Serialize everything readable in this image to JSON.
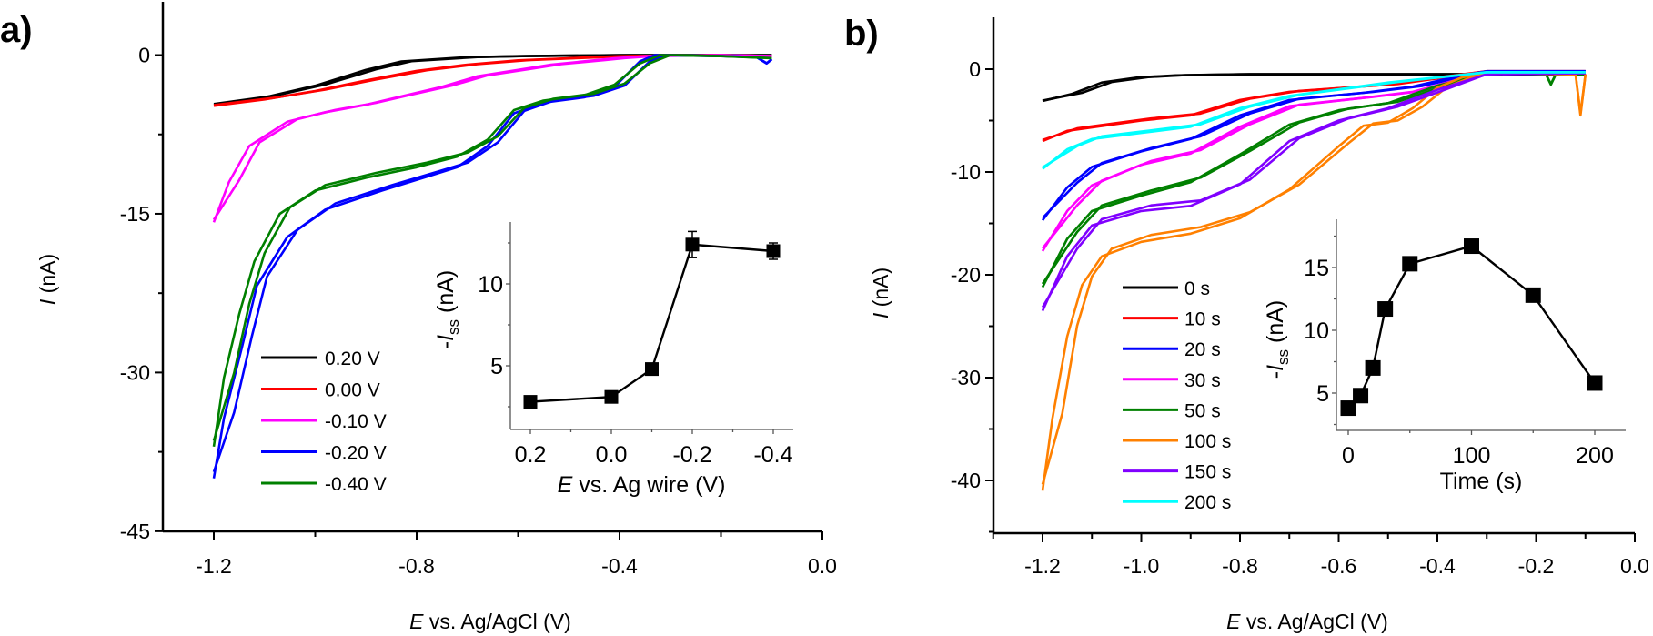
{
  "chart_data": [
    {
      "panel_label": "a)",
      "type": "line",
      "xlabel": {
        "symbol": "E",
        "text": " vs. Ag/AgCl (V)"
      },
      "ylabel": {
        "symbol": "I",
        "text": " (nA)"
      },
      "xlim": [
        -1.3,
        0.0
      ],
      "ylim": [
        -45,
        5
      ],
      "xticks": [
        "-1.2",
        "-0.8",
        "-0.4",
        "0.0"
      ],
      "yticks": [
        "0",
        "-15",
        "-30",
        "-45"
      ],
      "grid": false,
      "legend_position": "bottom-left",
      "series": [
        {
          "name": "0.20 V",
          "color": "#000000",
          "x": [
            -1.2,
            -1.1,
            -1.0,
            -0.9,
            -0.83,
            -0.7,
            -0.6,
            -0.4,
            -0.2,
            -0.1
          ],
          "y": [
            -4.7,
            -4.0,
            -2.9,
            -1.4,
            -0.6,
            -0.2,
            -0.1,
            0,
            0,
            0
          ]
        },
        {
          "name": "0.00 V",
          "color": "#ff0000",
          "x": [
            -1.2,
            -1.1,
            -1.0,
            -0.9,
            -0.8,
            -0.7,
            -0.6,
            -0.5,
            -0.4,
            -0.2,
            -0.1
          ],
          "y": [
            -4.8,
            -4.2,
            -3.4,
            -2.4,
            -1.5,
            -0.9,
            -0.5,
            -0.3,
            -0.1,
            0,
            -0.1
          ]
        },
        {
          "name": "-0.10 V",
          "color": "#ff00ff",
          "x": [
            -1.2,
            -1.17,
            -1.13,
            -1.055,
            -0.98,
            -0.9,
            -0.83,
            -0.75,
            -0.68,
            -0.6,
            -0.535,
            -0.45,
            -0.41,
            -0.35,
            -0.2,
            -0.1
          ],
          "y": [
            -15.8,
            -12.0,
            -8.6,
            -6.3,
            -5.4,
            -4.7,
            -3.9,
            -3.0,
            -2.0,
            -1.4,
            -0.9,
            -0.5,
            -0.3,
            -0.1,
            0,
            -0.1
          ]
        },
        {
          "name": "-0.20 V",
          "color": "#0000ff",
          "x": [
            -1.2,
            -1.18,
            -1.145,
            -1.115,
            -1.055,
            -0.98,
            -0.868,
            -0.78,
            -0.72,
            -0.66,
            -0.608,
            -0.55,
            -0.47,
            -0.41,
            -0.36,
            -0.33,
            -0.2,
            -0.13,
            -0.11,
            -0.1
          ],
          "y": [
            -40,
            -34.3,
            -27.7,
            -21.8,
            -17.2,
            -14.6,
            -12.8,
            -11.5,
            -10.6,
            -8.6,
            -5.5,
            -4.5,
            -4.0,
            -3.0,
            -0.6,
            0,
            -0.1,
            -0.2,
            -0.8,
            -0.4
          ]
        },
        {
          "name": "-0.40 V",
          "color": "#008000",
          "x": [
            -1.2,
            -1.18,
            -1.15,
            -1.12,
            -1.07,
            -1.0,
            -0.9,
            -0.8,
            -0.72,
            -0.66,
            -0.608,
            -0.55,
            -0.47,
            -0.41,
            -0.36,
            -0.32,
            -0.2,
            -0.1
          ],
          "y": [
            -37,
            -30.5,
            -24.5,
            -19.5,
            -15.0,
            -12.8,
            -11.6,
            -10.6,
            -9.6,
            -8.0,
            -5.2,
            -4.3,
            -3.8,
            -2.8,
            -0.8,
            0,
            -0.1,
            -0.3
          ]
        }
      ],
      "inset": {
        "type": "line",
        "xlabel": {
          "symbol": "E",
          "text": " vs. Ag wire (V)"
        },
        "ylabel": {
          "prefix": "-",
          "symbol": "I",
          "subscript": "ss",
          "text": " (nA)"
        },
        "xlim": [
          0.25,
          -0.45
        ],
        "ylim": [
          1.1,
          13.8
        ],
        "xticks": [
          "0.2",
          "0.0",
          "-0.2",
          "-0.4"
        ],
        "yticks": [
          "5",
          "10"
        ],
        "marker": "square",
        "x": [
          0.2,
          0.0,
          -0.1,
          -0.2,
          -0.4
        ],
        "y": [
          2.8,
          3.1,
          4.8,
          12.4,
          12.0
        ],
        "yerr": [
          0.1,
          0.1,
          0.2,
          0.8,
          0.5
        ]
      }
    },
    {
      "panel_label": "b)",
      "type": "line",
      "xlabel": {
        "symbol": "E",
        "text": " vs. Ag/AgCl (V)"
      },
      "ylabel": {
        "symbol": "I",
        "text": " (nA)"
      },
      "xlim": [
        -1.3,
        0.0
      ],
      "ylim": [
        -45,
        5
      ],
      "xticks": [
        "-1.2",
        "-1.0",
        "-0.8",
        "-0.6",
        "-0.4",
        "-0.2",
        "0.0"
      ],
      "yticks": [
        "0",
        "-10",
        "-20",
        "-30",
        "-40"
      ],
      "grid": false,
      "legend_position": "bottom-left",
      "series": [
        {
          "name": "0 s",
          "color": "#000000",
          "x": [
            -1.2,
            -1.14,
            -1.08,
            -1.006,
            -0.93,
            -0.8,
            -0.5,
            -0.3,
            -0.1
          ],
          "y": [
            -3.1,
            -2.4,
            -1.3,
            -0.8,
            -0.6,
            -0.5,
            -0.5,
            -0.5,
            -0.5
          ]
        },
        {
          "name": "10 s",
          "color": "#ff0000",
          "x": [
            -1.2,
            -1.15,
            -1.0,
            -0.9,
            -0.8,
            -0.7,
            -0.5,
            -0.4,
            -0.3,
            -0.1
          ],
          "y": [
            -7.0,
            -6.0,
            -5.0,
            -4.5,
            -3.0,
            -2.2,
            -1.5,
            -0.8,
            -0.2,
            -0.2
          ]
        },
        {
          "name": "20 s",
          "color": "#0000ff",
          "x": [
            -1.2,
            -1.15,
            -1.1,
            -1.0,
            -0.9,
            -0.8,
            -0.7,
            -0.55,
            -0.45,
            -0.35,
            -0.3,
            -0.1
          ],
          "y": [
            -14.7,
            -11.5,
            -9.5,
            -8.0,
            -6.8,
            -4.5,
            -3.0,
            -2.3,
            -1.7,
            -0.6,
            -0.2,
            -0.2
          ]
        },
        {
          "name": "30 s",
          "color": "#ff00ff",
          "x": [
            -1.2,
            -1.15,
            -1.1,
            -1.0,
            -0.9,
            -0.8,
            -0.7,
            -0.55,
            -0.45,
            -0.35,
            -0.3,
            -0.1
          ],
          "y": [
            -17.7,
            -13.8,
            -11.3,
            -9.3,
            -8.2,
            -5.6,
            -3.6,
            -2.8,
            -2.2,
            -0.9,
            -0.3,
            -0.3
          ]
        },
        {
          "name": "50 s",
          "color": "#008000",
          "x": [
            -1.2,
            -1.15,
            -1.1,
            -1.0,
            -0.9,
            -0.8,
            -0.7,
            -0.6,
            -0.5,
            -0.4,
            -0.3,
            -0.18,
            -0.17,
            -0.16,
            -0.1
          ],
          "y": [
            -21.2,
            -16.5,
            -13.8,
            -12.3,
            -11.0,
            -8.3,
            -5.4,
            -4.0,
            -3.3,
            -1.6,
            -0.4,
            -0.5,
            -1.5,
            -0.5,
            -0.5
          ]
        },
        {
          "name": "100 s",
          "color": "#ff8000",
          "x": [
            -1.2,
            -1.18,
            -1.15,
            -1.12,
            -1.08,
            -1.0,
            -0.9,
            -0.8,
            -0.7,
            -0.6,
            -0.55,
            -0.5,
            -0.45,
            -0.4,
            -0.35,
            -0.3,
            -0.12,
            -0.11,
            -0.1
          ],
          "y": [
            -41,
            -34,
            -26,
            -21,
            -18.2,
            -16.8,
            -16.0,
            -14.5,
            -11.7,
            -7.5,
            -5.5,
            -5.2,
            -3.8,
            -1.8,
            -0.8,
            -0.4,
            -0.5,
            -4.5,
            -0.5
          ]
        },
        {
          "name": "150 s",
          "color": "#8000ff",
          "x": [
            -1.2,
            -1.15,
            -1.1,
            -1.0,
            -0.9,
            -0.8,
            -0.7,
            -0.6,
            -0.5,
            -0.4,
            -0.3,
            -0.1
          ],
          "y": [
            -23.5,
            -18.2,
            -15.2,
            -13.8,
            -13.3,
            -11.2,
            -7.0,
            -5.0,
            -3.8,
            -2.0,
            -0.5,
            -0.4
          ]
        },
        {
          "name": "200 s",
          "color": "#00ffff",
          "x": [
            -1.2,
            -1.15,
            -1.1,
            -1.0,
            -0.9,
            -0.8,
            -0.7,
            -0.5,
            -0.3,
            -0.1
          ],
          "y": [
            -9.7,
            -7.8,
            -6.8,
            -6.2,
            -5.6,
            -3.8,
            -2.6,
            -1.3,
            -0.3,
            -0.3
          ]
        }
      ],
      "inset": {
        "type": "line",
        "xlabel": {
          "symbol": "",
          "text": "Time (s)"
        },
        "ylabel": {
          "prefix": "-",
          "symbol": "I",
          "subscript": "ss",
          "text": " (nA)"
        },
        "xlim": [
          -10,
          226
        ],
        "ylim": [
          2.0,
          18.9
        ],
        "xticks": [
          "0",
          "100",
          "200"
        ],
        "yticks": [
          "5",
          "10",
          "15"
        ],
        "marker": "square",
        "x": [
          0,
          10,
          20,
          30,
          50,
          100,
          150,
          200
        ],
        "y": [
          3.8,
          4.8,
          7.0,
          11.7,
          15.3,
          16.7,
          12.8,
          5.8
        ]
      }
    }
  ]
}
